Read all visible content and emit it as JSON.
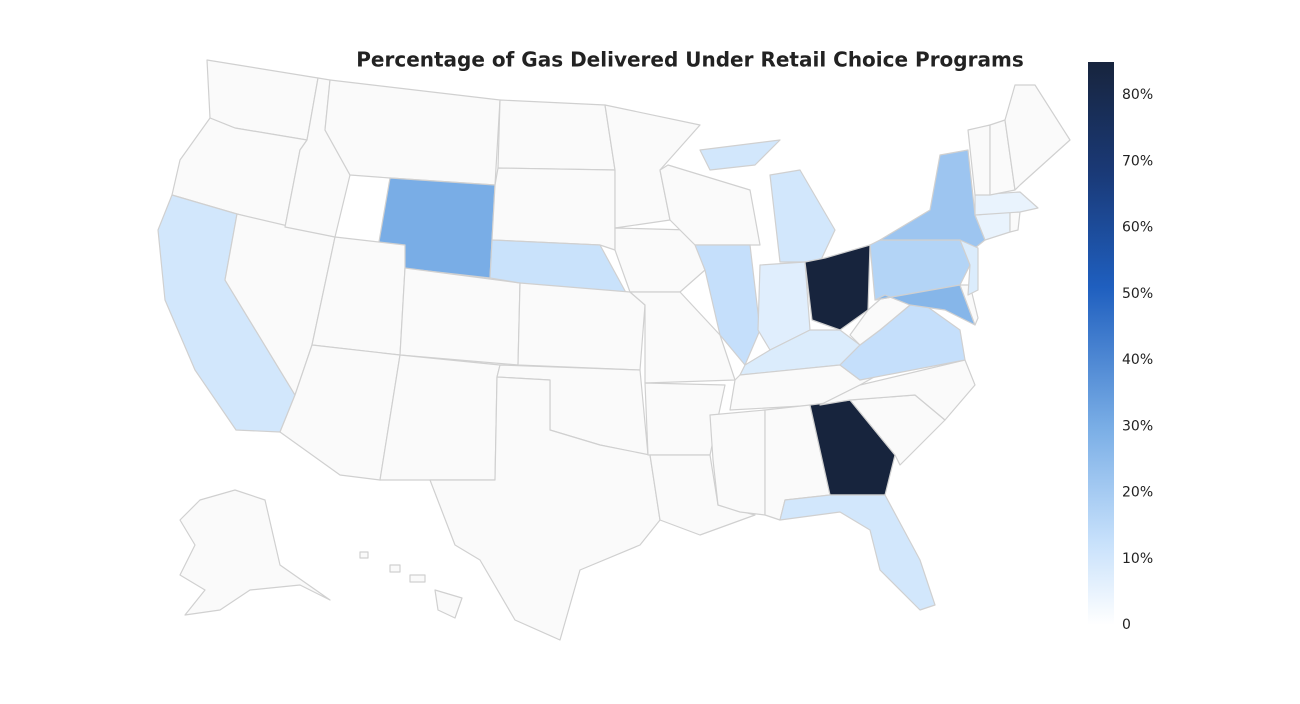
{
  "chart_data": {
    "type": "choropleth",
    "title": "Percentage of Gas Delivered Under Retail Choice Programs",
    "locations": [
      "CA",
      "WY",
      "NE",
      "IL",
      "IN",
      "OH",
      "MI",
      "KY",
      "GA",
      "FL",
      "NY",
      "PA",
      "MD",
      "VA",
      "NJ",
      "CT",
      "MA"
    ],
    "values": [
      10,
      30,
      12,
      13,
      7,
      85,
      10,
      8,
      85,
      10,
      22,
      17,
      27,
      13,
      8,
      5,
      5
    ],
    "zlim": [
      0,
      85
    ],
    "zticks": [
      0,
      {
        "value": 10,
        "label": "10%"
      },
      {
        "value": 20,
        "label": "20%"
      },
      {
        "value": 30,
        "label": "30%"
      },
      {
        "value": 40,
        "label": "40%"
      },
      {
        "value": 50,
        "label": "50%"
      },
      {
        "value": 60,
        "label": "60%"
      },
      {
        "value": 70,
        "label": "70%"
      },
      {
        "value": 80,
        "label": "80%"
      }
    ],
    "colorscale": [
      [
        0,
        "#ffffff"
      ],
      [
        0.15,
        "#c6e0fb"
      ],
      [
        0.35,
        "#7aaee6"
      ],
      [
        0.6,
        "#1f5fbf"
      ],
      [
        0.8,
        "#1a3a78"
      ],
      [
        1,
        "#17243d"
      ]
    ]
  }
}
